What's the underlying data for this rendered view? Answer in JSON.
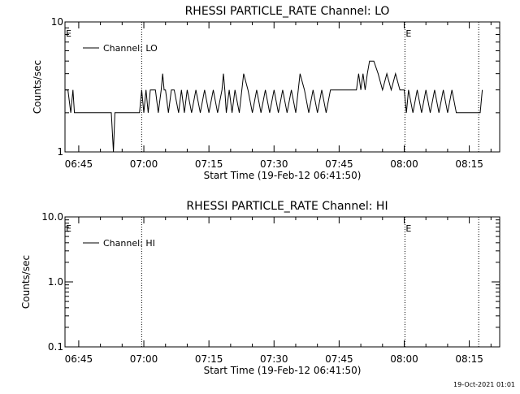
{
  "footer": {
    "timestamp": "19-Oct-2021 01:01"
  },
  "chart_data": [
    {
      "type": "line",
      "title": "RHESSI PARTICLE_RATE Channel: LO",
      "xlabel": "Start Time (19-Feb-12 06:41:50)",
      "ylabel": "Counts/sec",
      "yscale": "log",
      "xlim": [
        "06:41:50",
        "08:22:00"
      ],
      "ylim": [
        1,
        10
      ],
      "x_ticks": [
        "06:45",
        "07:00",
        "07:15",
        "07:30",
        "07:45",
        "08:00",
        "08:15"
      ],
      "y_ticks": [
        "1",
        "10"
      ],
      "legend": {
        "position": "top-left",
        "entries": [
          "Channel: LO"
        ]
      },
      "vlines": [
        "06:59:30",
        "08:00:10",
        "08:17:10"
      ],
      "event_marks": [
        {
          "label": "E",
          "x": "06:41:50"
        },
        {
          "label": "E",
          "x": "08:00:10"
        }
      ],
      "series": [
        {
          "name": "Channel: LO",
          "x": [
            "06:41:50",
            "06:42:30",
            "06:43:10",
            "06:43:40",
            "06:44:00",
            "06:50:00",
            "06:52:30",
            "06:53:00",
            "06:53:20",
            "06:53:40",
            "06:59:00",
            "06:59:30",
            "07:00:00",
            "07:00:30",
            "07:01:00",
            "07:01:30",
            "07:02:00",
            "07:02:40",
            "07:03:20",
            "07:04:00",
            "07:04:20",
            "07:04:40",
            "07:05:00",
            "07:05:40",
            "07:06:20",
            "07:07:00",
            "07:08:00",
            "07:08:40",
            "07:09:20",
            "07:10:00",
            "07:11:00",
            "07:12:00",
            "07:13:00",
            "07:14:00",
            "07:15:00",
            "07:16:00",
            "07:17:00",
            "07:18:00",
            "07:18:20",
            "07:18:40",
            "07:19:00",
            "07:19:40",
            "07:20:20",
            "07:21:00",
            "07:22:00",
            "07:23:00",
            "07:24:00",
            "07:25:00",
            "07:26:00",
            "07:27:00",
            "07:28:00",
            "07:29:00",
            "07:30:00",
            "07:31:00",
            "07:32:00",
            "07:33:00",
            "07:34:00",
            "07:35:00",
            "07:36:00",
            "07:37:00",
            "07:38:00",
            "07:39:00",
            "07:40:00",
            "07:41:00",
            "07:42:00",
            "07:43:00",
            "07:44:00",
            "07:45:00",
            "07:46:00",
            "07:47:00",
            "07:48:00",
            "07:49:00",
            "07:49:30",
            "07:50:00",
            "07:50:30",
            "07:51:00",
            "07:51:30",
            "07:52:00",
            "07:52:30",
            "07:53:00",
            "07:54:00",
            "07:55:00",
            "07:56:00",
            "07:57:00",
            "07:58:00",
            "07:59:00",
            "08:00:00",
            "08:00:30",
            "08:01:00",
            "08:02:00",
            "08:03:00",
            "08:04:00",
            "08:05:00",
            "08:06:00",
            "08:07:00",
            "08:08:00",
            "08:09:00",
            "08:10:00",
            "08:11:00",
            "08:12:00",
            "08:13:00",
            "08:14:00",
            "08:15:00",
            "08:16:00",
            "08:17:00",
            "08:17:30",
            "08:18:00"
          ],
          "y": [
            3,
            3,
            2,
            3,
            2,
            2,
            2,
            1,
            2,
            2,
            2,
            3,
            2,
            3,
            2,
            3,
            3,
            3,
            2,
            3,
            4,
            3,
            3,
            2,
            3,
            3,
            2,
            3,
            2,
            3,
            2,
            3,
            2,
            3,
            2,
            3,
            2,
            3,
            4,
            3,
            2,
            3,
            2,
            3,
            2,
            4,
            3,
            2,
            3,
            2,
            3,
            2,
            3,
            2,
            3,
            2,
            3,
            2,
            4,
            3,
            2,
            3,
            2,
            3,
            2,
            3,
            3,
            3,
            3,
            3,
            3,
            3,
            4,
            3,
            4,
            3,
            4,
            5,
            5,
            5,
            4,
            3,
            4,
            3,
            4,
            3,
            3,
            2,
            3,
            2,
            3,
            2,
            3,
            2,
            3,
            2,
            3,
            2,
            3,
            2,
            2,
            2,
            2,
            2,
            2,
            2,
            3
          ]
        }
      ]
    },
    {
      "type": "line",
      "title": "RHESSI PARTICLE_RATE Channel: HI",
      "xlabel": "Start Time (19-Feb-12 06:41:50)",
      "ylabel": "Counts/sec",
      "yscale": "log",
      "xlim": [
        "06:41:50",
        "08:22:00"
      ],
      "ylim": [
        0.1,
        10
      ],
      "x_ticks": [
        "06:45",
        "07:00",
        "07:15",
        "07:30",
        "07:45",
        "08:00",
        "08:15"
      ],
      "y_ticks": [
        "0.1",
        "1.0",
        "10.0"
      ],
      "legend": {
        "position": "top-left",
        "entries": [
          "Channel: HI"
        ]
      },
      "vlines": [
        "06:59:30",
        "08:00:10",
        "08:17:10"
      ],
      "event_marks": [
        {
          "label": "E",
          "x": "06:41:50"
        },
        {
          "label": "E",
          "x": "08:00:10"
        }
      ],
      "series": [
        {
          "name": "Channel: HI",
          "x": [],
          "y": []
        }
      ]
    }
  ]
}
